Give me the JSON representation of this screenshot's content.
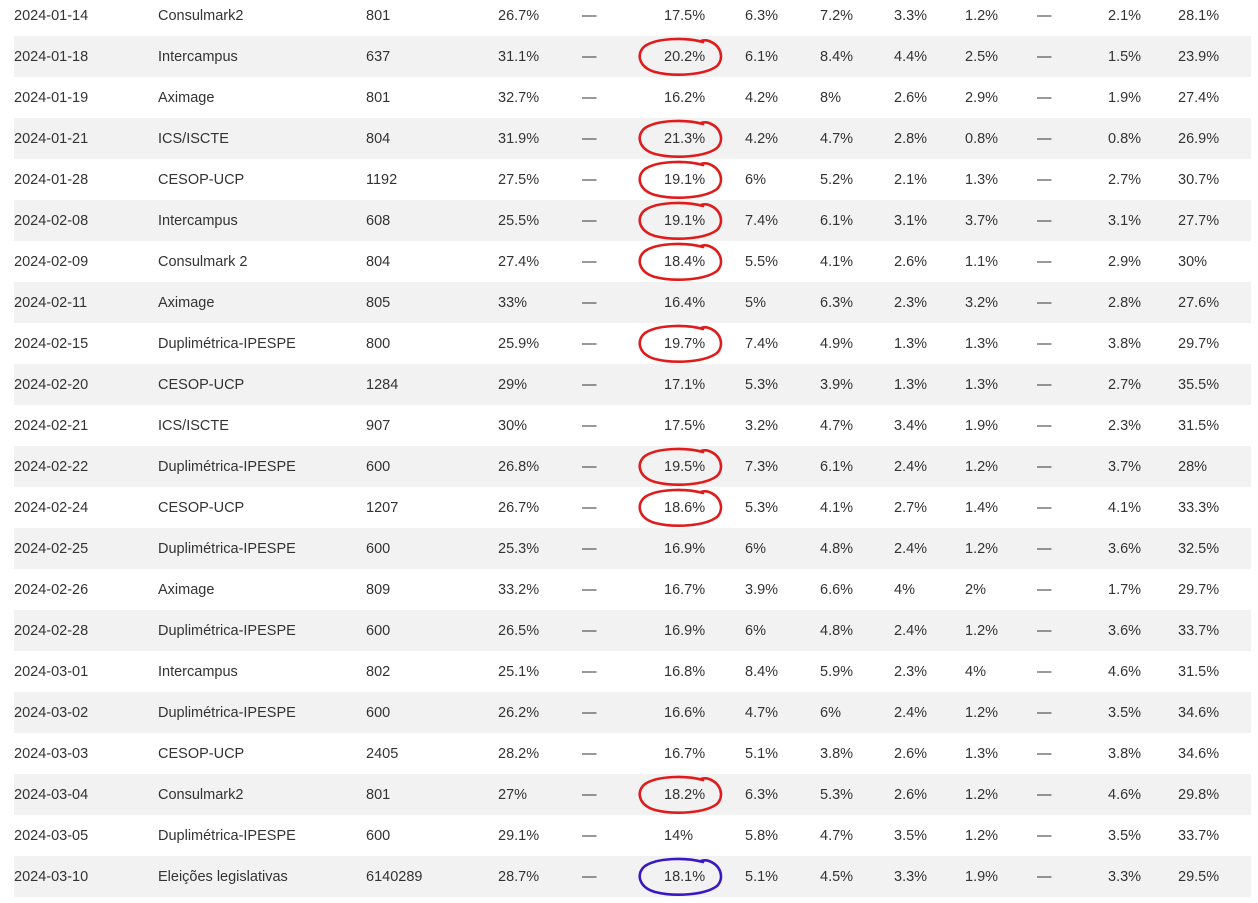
{
  "table": {
    "rows": [
      {
        "date": "2024-01-14",
        "pollster": "Consulmark2",
        "sample": "801",
        "c1": "26.7%",
        "c2": "—",
        "c3": "17.5%",
        "c4": "6.3%",
        "c5": "7.2%",
        "c6": "3.3%",
        "c7": "1.2%",
        "c8": "—",
        "c9": "2.1%",
        "c10": "28.1%"
      },
      {
        "date": "2024-01-18",
        "pollster": "Intercampus",
        "sample": "637",
        "c1": "31.1%",
        "c2": "—",
        "c3": "20.2%",
        "c4": "6.1%",
        "c5": "8.4%",
        "c6": "4.4%",
        "c7": "2.5%",
        "c8": "—",
        "c9": "1.5%",
        "c10": "23.9%"
      },
      {
        "date": "2024-01-19",
        "pollster": "Aximage",
        "sample": "801",
        "c1": "32.7%",
        "c2": "—",
        "c3": "16.2%",
        "c4": "4.2%",
        "c5": "8%",
        "c6": "2.6%",
        "c7": "2.9%",
        "c8": "—",
        "c9": "1.9%",
        "c10": "27.4%"
      },
      {
        "date": "2024-01-21",
        "pollster": "ICS/ISCTE",
        "sample": "804",
        "c1": "31.9%",
        "c2": "—",
        "c3": "21.3%",
        "c4": "4.2%",
        "c5": "4.7%",
        "c6": "2.8%",
        "c7": "0.8%",
        "c8": "—",
        "c9": "0.8%",
        "c10": "26.9%"
      },
      {
        "date": "2024-01-28",
        "pollster": "CESOP-UCP",
        "sample": "1192",
        "c1": "27.5%",
        "c2": "—",
        "c3": "19.1%",
        "c4": "6%",
        "c5": "5.2%",
        "c6": "2.1%",
        "c7": "1.3%",
        "c8": "—",
        "c9": "2.7%",
        "c10": "30.7%"
      },
      {
        "date": "2024-02-08",
        "pollster": "Intercampus",
        "sample": "608",
        "c1": "25.5%",
        "c2": "—",
        "c3": "19.1%",
        "c4": "7.4%",
        "c5": "6.1%",
        "c6": "3.1%",
        "c7": "3.7%",
        "c8": "—",
        "c9": "3.1%",
        "c10": "27.7%"
      },
      {
        "date": "2024-02-09",
        "pollster": "Consulmark 2",
        "sample": "804",
        "c1": "27.4%",
        "c2": "—",
        "c3": "18.4%",
        "c4": "5.5%",
        "c5": "4.1%",
        "c6": "2.6%",
        "c7": "1.1%",
        "c8": "—",
        "c9": "2.9%",
        "c10": "30%"
      },
      {
        "date": "2024-02-11",
        "pollster": "Aximage",
        "sample": "805",
        "c1": "33%",
        "c2": "—",
        "c3": "16.4%",
        "c4": "5%",
        "c5": "6.3%",
        "c6": "2.3%",
        "c7": "3.2%",
        "c8": "—",
        "c9": "2.8%",
        "c10": "27.6%"
      },
      {
        "date": "2024-02-15",
        "pollster": "Duplimétrica-IPESPE",
        "sample": "800",
        "c1": "25.9%",
        "c2": "—",
        "c3": "19.7%",
        "c4": "7.4%",
        "c5": "4.9%",
        "c6": "1.3%",
        "c7": "1.3%",
        "c8": "—",
        "c9": "3.8%",
        "c10": "29.7%"
      },
      {
        "date": "2024-02-20",
        "pollster": "CESOP-UCP",
        "sample": "1284",
        "c1": "29%",
        "c2": "—",
        "c3": "17.1%",
        "c4": "5.3%",
        "c5": "3.9%",
        "c6": "1.3%",
        "c7": "1.3%",
        "c8": "—",
        "c9": "2.7%",
        "c10": "35.5%"
      },
      {
        "date": "2024-02-21",
        "pollster": "ICS/ISCTE",
        "sample": "907",
        "c1": "30%",
        "c2": "—",
        "c3": "17.5%",
        "c4": "3.2%",
        "c5": "4.7%",
        "c6": "3.4%",
        "c7": "1.9%",
        "c8": "—",
        "c9": "2.3%",
        "c10": "31.5%"
      },
      {
        "date": "2024-02-22",
        "pollster": "Duplimétrica-IPESPE",
        "sample": "600",
        "c1": "26.8%",
        "c2": "—",
        "c3": "19.5%",
        "c4": "7.3%",
        "c5": "6.1%",
        "c6": "2.4%",
        "c7": "1.2%",
        "c8": "—",
        "c9": "3.7%",
        "c10": "28%"
      },
      {
        "date": "2024-02-24",
        "pollster": "CESOP-UCP",
        "sample": "1207",
        "c1": "26.7%",
        "c2": "—",
        "c3": "18.6%",
        "c4": "5.3%",
        "c5": "4.1%",
        "c6": "2.7%",
        "c7": "1.4%",
        "c8": "—",
        "c9": "4.1%",
        "c10": "33.3%"
      },
      {
        "date": "2024-02-25",
        "pollster": "Duplimétrica-IPESPE",
        "sample": "600",
        "c1": "25.3%",
        "c2": "—",
        "c3": "16.9%",
        "c4": "6%",
        "c5": "4.8%",
        "c6": "2.4%",
        "c7": "1.2%",
        "c8": "—",
        "c9": "3.6%",
        "c10": "32.5%"
      },
      {
        "date": "2024-02-26",
        "pollster": "Aximage",
        "sample": "809",
        "c1": "33.2%",
        "c2": "—",
        "c3": "16.7%",
        "c4": "3.9%",
        "c5": "6.6%",
        "c6": "4%",
        "c7": "2%",
        "c8": "—",
        "c9": "1.7%",
        "c10": "29.7%"
      },
      {
        "date": "2024-02-28",
        "pollster": "Duplimétrica-IPESPE",
        "sample": "600",
        "c1": "26.5%",
        "c2": "—",
        "c3": "16.9%",
        "c4": "6%",
        "c5": "4.8%",
        "c6": "2.4%",
        "c7": "1.2%",
        "c8": "—",
        "c9": "3.6%",
        "c10": "33.7%"
      },
      {
        "date": "2024-03-01",
        "pollster": "Intercampus",
        "sample": "802",
        "c1": "25.1%",
        "c2": "—",
        "c3": "16.8%",
        "c4": "8.4%",
        "c5": "5.9%",
        "c6": "2.3%",
        "c7": "4%",
        "c8": "—",
        "c9": "4.6%",
        "c10": "31.5%"
      },
      {
        "date": "2024-03-02",
        "pollster": "Duplimétrica-IPESPE",
        "sample": "600",
        "c1": "26.2%",
        "c2": "—",
        "c3": "16.6%",
        "c4": "4.7%",
        "c5": "6%",
        "c6": "2.4%",
        "c7": "1.2%",
        "c8": "—",
        "c9": "3.5%",
        "c10": "34.6%"
      },
      {
        "date": "2024-03-03",
        "pollster": "CESOP-UCP",
        "sample": "2405",
        "c1": "28.2%",
        "c2": "—",
        "c3": "16.7%",
        "c4": "5.1%",
        "c5": "3.8%",
        "c6": "2.6%",
        "c7": "1.3%",
        "c8": "—",
        "c9": "3.8%",
        "c10": "34.6%"
      },
      {
        "date": "2024-03-04",
        "pollster": "Consulmark2",
        "sample": "801",
        "c1": "27%",
        "c2": "—",
        "c3": "18.2%",
        "c4": "6.3%",
        "c5": "5.3%",
        "c6": "2.6%",
        "c7": "1.2%",
        "c8": "—",
        "c9": "4.6%",
        "c10": "29.8%"
      },
      {
        "date": "2024-03-05",
        "pollster": "Duplimétrica-IPESPE",
        "sample": "600",
        "c1": "29.1%",
        "c2": "—",
        "c3": "14%",
        "c4": "5.8%",
        "c5": "4.7%",
        "c6": "3.5%",
        "c7": "1.2%",
        "c8": "—",
        "c9": "3.5%",
        "c10": "33.7%"
      },
      {
        "date": "2024-03-10",
        "pollster": "Eleições legislativas",
        "sample": "6140289",
        "c1": "28.7%",
        "c2": "—",
        "c3": "18.1%",
        "c4": "5.1%",
        "c5": "4.5%",
        "c6": "3.3%",
        "c7": "1.9%",
        "c8": "—",
        "c9": "3.3%",
        "c10": "29.5%"
      }
    ]
  },
  "annotations": {
    "circled_rows": [
      1,
      3,
      4,
      5,
      6,
      8,
      11,
      12,
      19
    ],
    "circled_color": "#e01b1b",
    "result_row": 21,
    "result_color": "#3a17c4"
  }
}
